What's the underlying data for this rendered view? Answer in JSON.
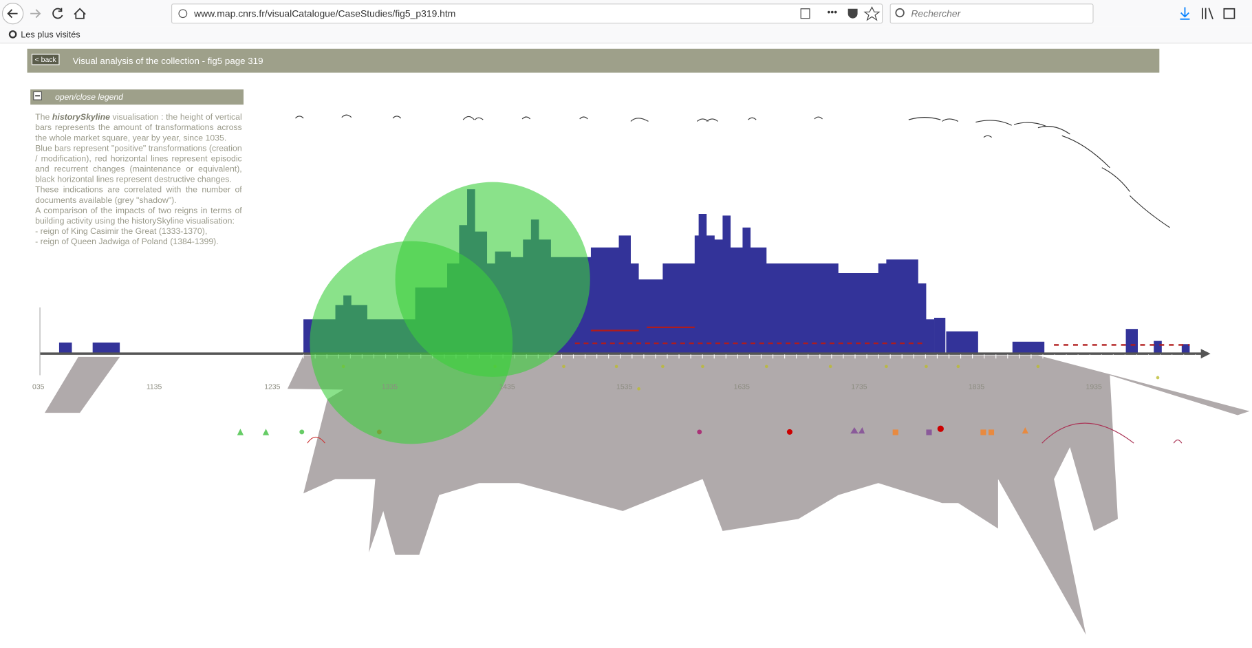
{
  "browser": {
    "url": "www.map.cnrs.fr/visualCatalogue/CaseStudies/fig5_p319.htm",
    "search_placeholder": "Rechercher",
    "bookmark": "Les plus visités"
  },
  "header": {
    "back": "< back",
    "title": "Visual analysis of the collection - fig5 page 319"
  },
  "legend": {
    "toggle": "open/close legend",
    "intro": [
      "The ",
      "historySkyline",
      " visualisation : the height of vertical bars represents the amount of transformations across the whole market square, year by year, since 1035."
    ],
    "paragraphs": [
      "Blue bars represent \"positive\" transformations (creation / modification), red horizontal lines represent episodic and recurrent changes (maintenance or equivalent), black horizontal lines represent destructive changes.",
      "These indications are correlated with the number of documents available (grey \"shadow\").",
      "A comparison of the impacts of two reigns in terms of building activity using the historySkyline visualisation:",
      "- reign of King Casimir the Great (1333-1370),",
      "- reign of Queen Jadwiga of Poland (1384-1399)."
    ]
  },
  "axis": {
    "labels": [
      "035",
      "1135",
      "1235",
      "1335",
      "1435",
      "1535",
      "1635",
      "1735",
      "1835",
      "1935"
    ]
  }
}
